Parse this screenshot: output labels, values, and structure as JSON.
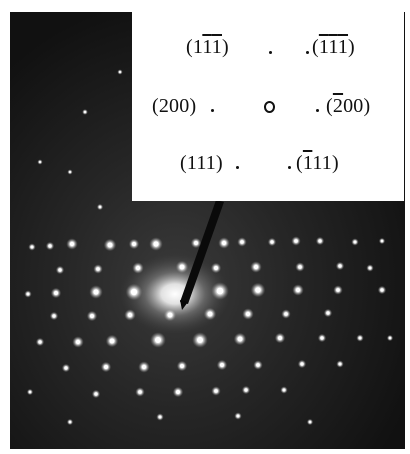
{
  "inset": {
    "row1": {
      "left": {
        "open": "(1",
        "b1": "1",
        "b2": "1",
        "close": ")"
      },
      "right": {
        "open": "(",
        "b1": "1",
        "b2": "1",
        "b3": "1",
        "close": ")"
      }
    },
    "row2": {
      "left": {
        "text": "(200)"
      },
      "right": {
        "open": "(",
        "b1": "2",
        "rest": "00)"
      }
    },
    "row3": {
      "left": {
        "text": "(111)"
      },
      "right": {
        "open": "(",
        "b1": "1",
        "rest": "11)"
      }
    }
  },
  "colors": {
    "background": "#000000",
    "spot": "#ffffff",
    "inset": "#ffffff"
  }
}
